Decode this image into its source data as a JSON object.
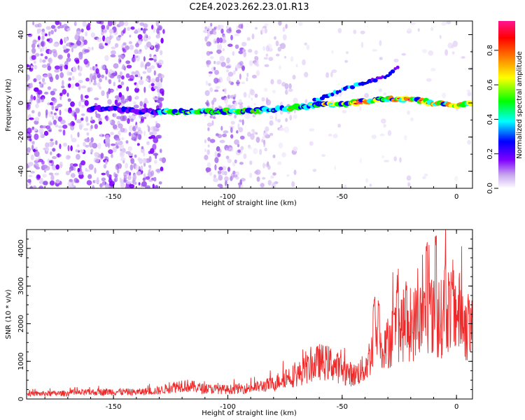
{
  "figure": {
    "title": "C2E4.2023.262.23.01.R13"
  },
  "chart_data": [
    {
      "type": "heatmap",
      "xlabel": "Height of straight line (km)",
      "ylabel": "Frequency (Hz)",
      "xlim": [
        -188,
        7
      ],
      "ylim": [
        -50,
        48
      ],
      "xticks": [
        -150,
        -100,
        -50,
        0
      ],
      "yticks": [
        -40,
        -20,
        0,
        20,
        40
      ],
      "colorbar": {
        "label": "Normalized spectral amplitude",
        "range": [
          0,
          0.97
        ],
        "ticks": [
          0.0,
          0.2,
          0.4,
          0.6,
          0.8
        ],
        "colormap": [
          "#ffffff",
          "#c8a6ee",
          "#7f00ff",
          "#0000ff",
          "#00ffff",
          "#00ff00",
          "#ffff00",
          "#ff8000",
          "#ff0000",
          "#ff1490"
        ]
      },
      "main_trace": [
        [
          -150,
          -3.5
        ],
        [
          -130,
          -5.5
        ],
        [
          -110,
          -5
        ],
        [
          -90,
          -4.5
        ],
        [
          -75,
          -3.5
        ],
        [
          -60,
          -1
        ],
        [
          -50,
          -0.5
        ],
        [
          -40,
          1
        ],
        [
          -30,
          2.5
        ],
        [
          -20,
          2
        ],
        [
          -10,
          0
        ],
        [
          0,
          -1.5
        ],
        [
          7,
          0
        ]
      ],
      "branch_trace": [
        [
          -60,
          2
        ],
        [
          -50,
          8
        ],
        [
          -40,
          12
        ],
        [
          -30,
          16
        ],
        [
          -25,
          22
        ]
      ]
    },
    {
      "type": "line",
      "xlabel": "Height of straight line (km)",
      "ylabel": "SNR (10 * v/v)",
      "xlim": [
        -188,
        7
      ],
      "ylim": [
        0,
        4500
      ],
      "xticks": [
        -150,
        -100,
        -50,
        0
      ],
      "yticks": [
        0,
        1000,
        2000,
        3000,
        4000
      ],
      "line_color": "#ee2a2a",
      "envelope": [
        [
          -188,
          150
        ],
        [
          -170,
          170
        ],
        [
          -150,
          220
        ],
        [
          -140,
          200
        ],
        [
          -130,
          250
        ],
        [
          -120,
          420
        ],
        [
          -110,
          300
        ],
        [
          -100,
          280
        ],
        [
          -90,
          330
        ],
        [
          -85,
          380
        ],
        [
          -80,
          450
        ],
        [
          -75,
          650
        ],
        [
          -70,
          700
        ],
        [
          -65,
          900
        ],
        [
          -60,
          1100
        ],
        [
          -55,
          1050
        ],
        [
          -50,
          850
        ],
        [
          -45,
          700
        ],
        [
          -40,
          900
        ],
        [
          -37,
          1400
        ],
        [
          -35,
          1900
        ],
        [
          -32,
          1200
        ],
        [
          -30,
          1700
        ],
        [
          -27,
          2000
        ],
        [
          -25,
          2100
        ],
        [
          -22,
          2200
        ],
        [
          -20,
          2050
        ],
        [
          -17,
          2400
        ],
        [
          -15,
          2300
        ],
        [
          -12,
          2600
        ],
        [
          -10,
          2400
        ],
        [
          -8,
          2200
        ],
        [
          -5,
          2600
        ],
        [
          -3,
          2700
        ],
        [
          0,
          2600
        ],
        [
          3,
          2400
        ],
        [
          5,
          2000
        ],
        [
          7,
          2000
        ]
      ],
      "spikes": [
        [
          -36,
          2700
        ],
        [
          -34,
          2600
        ],
        [
          -26,
          3050
        ],
        [
          -22,
          3200
        ],
        [
          -13,
          4300
        ],
        [
          -9,
          4450
        ],
        [
          -5,
          3600
        ],
        [
          -2,
          3100
        ]
      ]
    }
  ]
}
